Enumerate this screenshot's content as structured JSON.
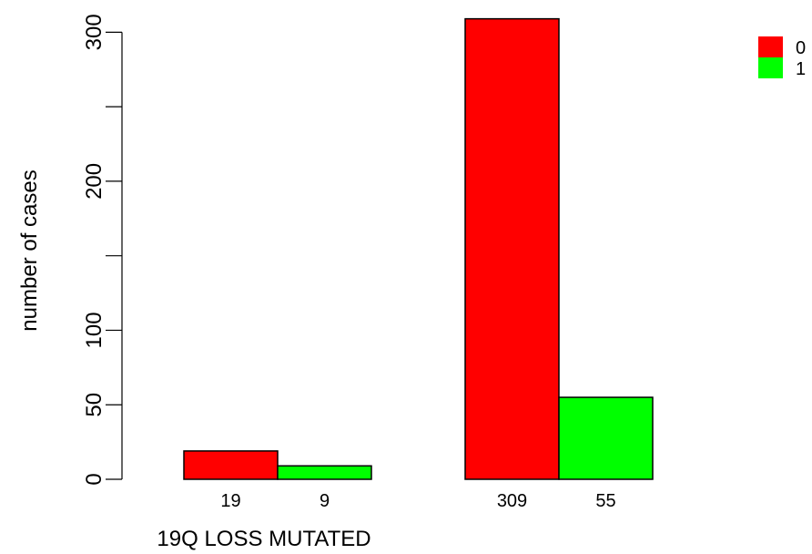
{
  "chart_data": {
    "type": "bar",
    "xlabel": "19Q LOSS MUTATED",
    "ylabel": "number of cases",
    "ylim": [
      0,
      310
    ],
    "yticks": [
      0,
      50,
      100,
      200,
      300
    ],
    "yticks_minor": [
      150,
      250
    ],
    "grid": false,
    "legend_position": "top-right",
    "groups": [
      {
        "bars": [
          {
            "series": "0",
            "value": 19,
            "label": "19"
          },
          {
            "series": "1",
            "value": 9,
            "label": "9"
          }
        ]
      },
      {
        "bars": [
          {
            "series": "0",
            "value": 309,
            "label": "309"
          },
          {
            "series": "1",
            "value": 55,
            "label": "55"
          }
        ]
      }
    ],
    "series": [
      {
        "name": "0",
        "color": "#ff0000"
      },
      {
        "name": "1",
        "color": "#00ff00"
      }
    ]
  }
}
